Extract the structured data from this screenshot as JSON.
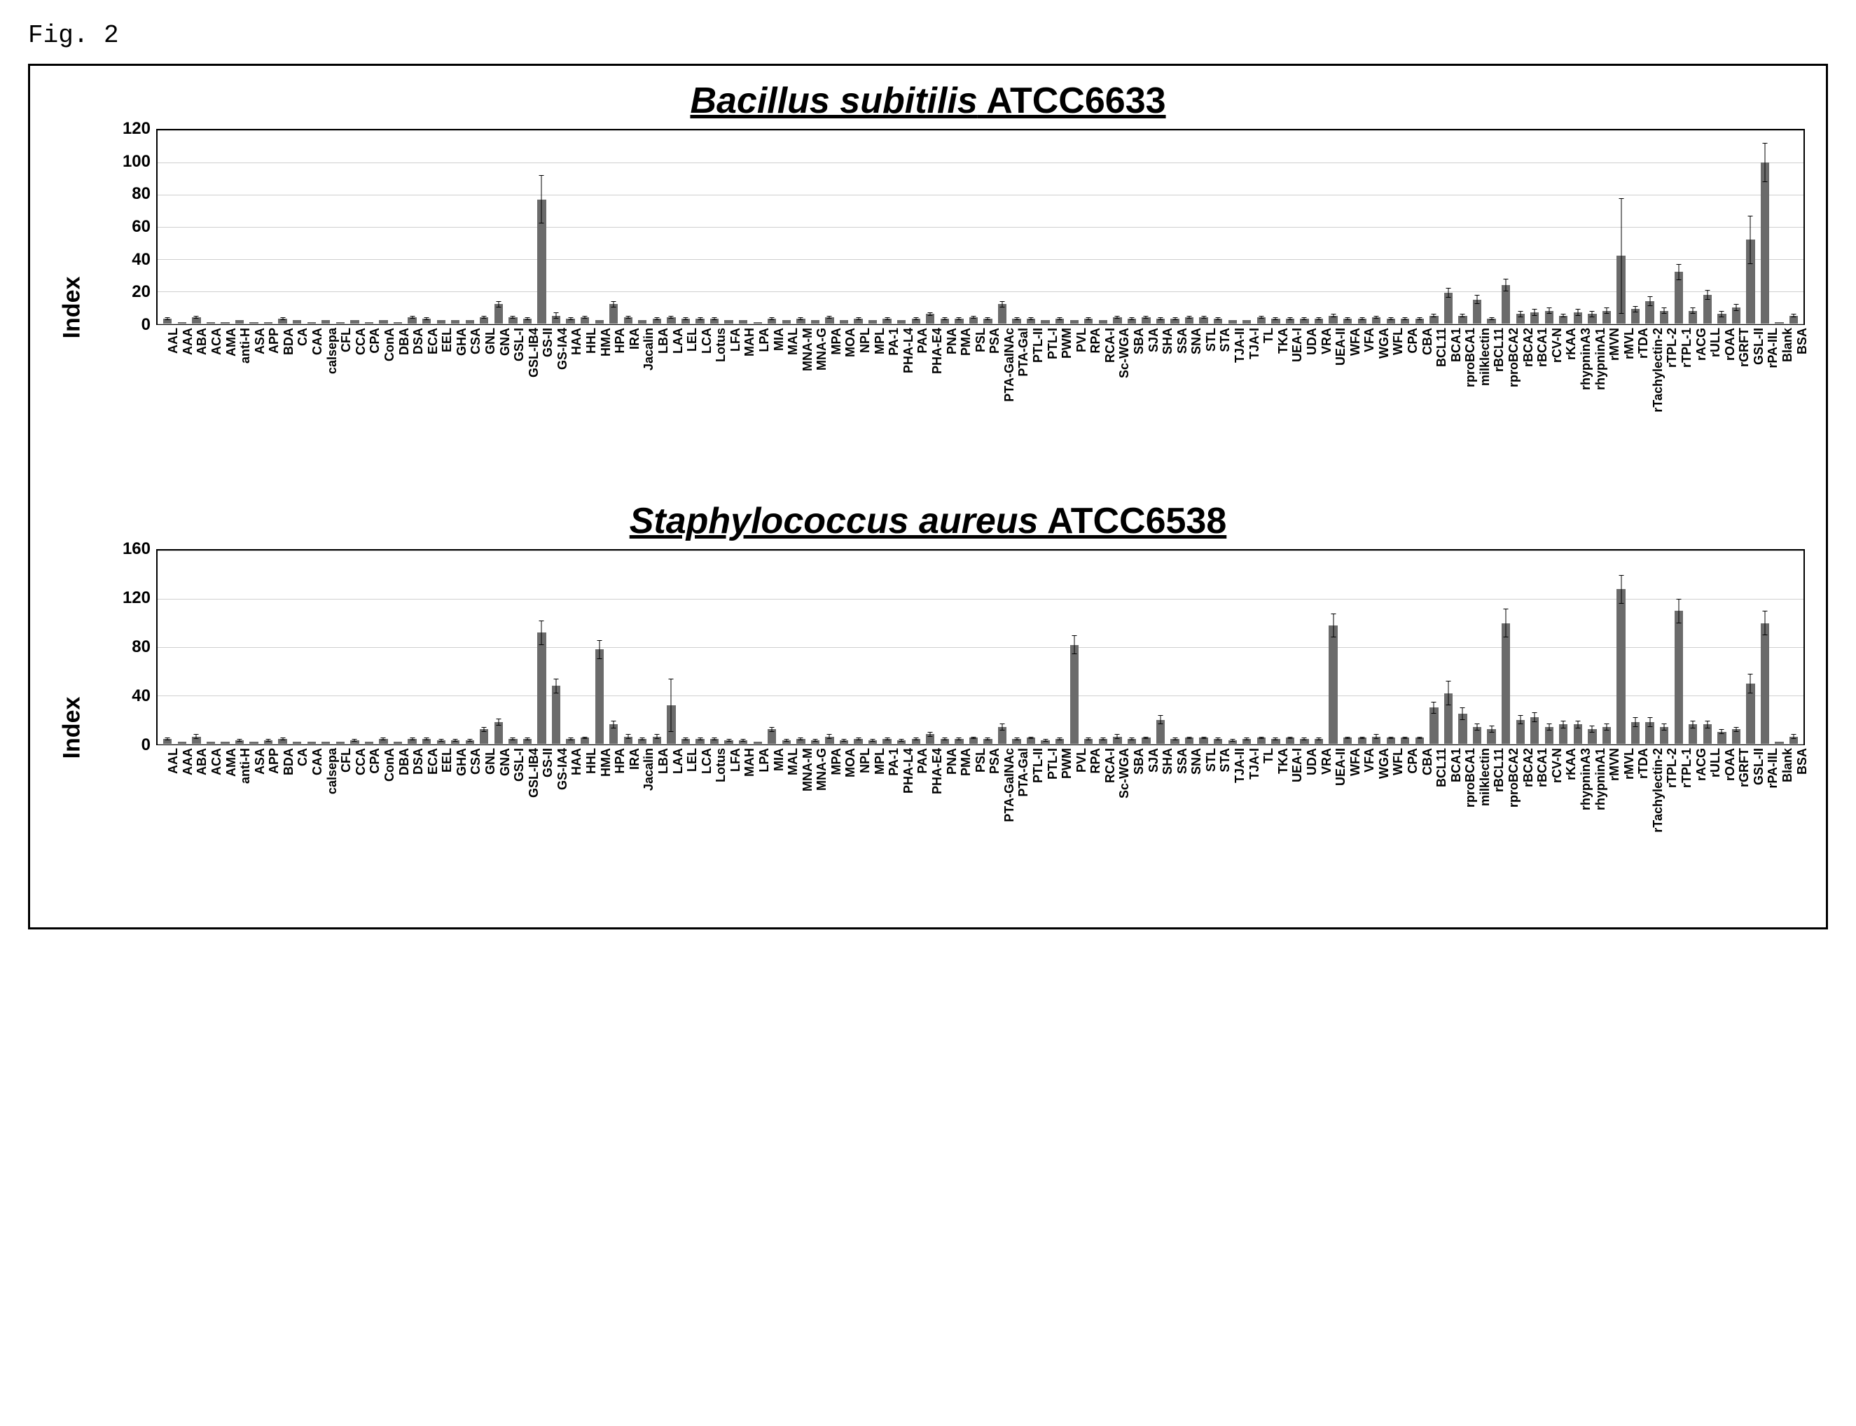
{
  "figLabel": "Fig. 2",
  "categories": [
    "AAL",
    "AAA",
    "ABA",
    "ACA",
    "AMA",
    "anti-H",
    "ASA",
    "APP",
    "BDA",
    "CA",
    "CAA",
    "calsepa",
    "CFL",
    "CCA",
    "CPA",
    "ConA",
    "DBA",
    "DSA",
    "ECA",
    "EEL",
    "GHA",
    "CSA",
    "GNL",
    "GNA",
    "GSL-I",
    "GSL-IB4",
    "GS-II",
    "GS-IA4",
    "HAA",
    "HHL",
    "HMA",
    "HPA",
    "IRA",
    "Jacalin",
    "LBA",
    "LAA",
    "LEL",
    "LCA",
    "Lotus",
    "LFA",
    "MAH",
    "LPA",
    "MIA",
    "MAL",
    "MNA-M",
    "MNA-G",
    "MPA",
    "MOA",
    "NPL",
    "MPL",
    "PA-1",
    "PHA-L4",
    "PAA",
    "PHA-E4",
    "PNA",
    "PMA",
    "PSL",
    "PSA",
    "PTA-GaINAc",
    "PTA-Gal",
    "PTL-II",
    "PTL-I",
    "PWM",
    "PVL",
    "RPA",
    "RCA-I",
    "Sc-WGA",
    "SBA",
    "SJA",
    "SHA",
    "SSA",
    "SNA",
    "STL",
    "STA",
    "TJA-II",
    "TJA-I",
    "TL",
    "TKA",
    "UEA-I",
    "UDA",
    "VRA",
    "UEA-II",
    "WFA",
    "VFA",
    "WGA",
    "WFL",
    "CPA",
    "CBA",
    "BCL11",
    "BCA1",
    "rproBCA1",
    "milklectin",
    "rBCL11",
    "rproBCA2",
    "rBCA2",
    "rBCA1",
    "rCV-N",
    "rKAA",
    "rhypninA3",
    "rhypninA1",
    "rMVN",
    "rMVL",
    "rTDA",
    "rTachylectin-2",
    "rTPL-2",
    "rTPL-1",
    "rACG",
    "rULL",
    "rOAA",
    "rGRFT",
    "GSL-II",
    "rPA-IIL",
    "Blank",
    "BSA"
  ],
  "charts": [
    {
      "titleItalic": "Bacillus subitilis",
      "titleRest": " ATCC6633",
      "ylabel": "Index",
      "ylim": [
        0,
        120
      ],
      "ytickStep": 20,
      "plotHeight": 280,
      "barColor": "#6b6b6b",
      "gridColor": "#cfcfcf",
      "background": "#ffffff",
      "barFontSize": 18,
      "tickFontSize": 24,
      "titleFontSize": 52,
      "values": [
        3,
        1,
        4,
        1,
        1,
        2,
        1,
        1,
        3,
        2,
        1,
        2,
        1,
        2,
        1,
        2,
        1,
        4,
        3,
        2,
        2,
        2,
        4,
        12,
        4,
        3,
        77,
        5,
        3,
        4,
        2,
        12,
        4,
        2,
        3,
        4,
        3,
        3,
        3,
        2,
        2,
        1,
        3,
        2,
        3,
        2,
        4,
        2,
        3,
        2,
        3,
        2,
        3,
        6,
        3,
        3,
        4,
        3,
        12,
        3,
        3,
        2,
        3,
        2,
        3,
        2,
        4,
        3,
        4,
        3,
        3,
        4,
        4,
        3,
        2,
        2,
        4,
        3,
        3,
        3,
        3,
        5,
        3,
        3,
        4,
        3,
        3,
        3,
        5,
        19,
        5,
        15,
        3,
        24,
        6,
        7,
        8,
        5,
        7,
        6,
        8,
        42,
        9,
        14,
        8,
        32,
        8,
        18,
        6,
        10,
        52,
        100,
        1,
        5
      ],
      "errors": [
        1,
        0,
        1,
        0,
        0,
        0,
        0,
        0,
        1,
        0,
        0,
        0,
        0,
        0,
        0,
        0,
        0,
        1,
        1,
        0,
        0,
        0,
        1,
        2,
        1,
        1,
        15,
        2,
        1,
        1,
        0,
        2,
        1,
        0,
        1,
        1,
        1,
        1,
        1,
        0,
        0,
        0,
        1,
        0,
        1,
        0,
        1,
        0,
        1,
        0,
        1,
        0,
        1,
        1,
        1,
        1,
        1,
        1,
        2,
        1,
        1,
        0,
        1,
        0,
        1,
        0,
        1,
        1,
        1,
        1,
        1,
        1,
        1,
        1,
        0,
        0,
        1,
        1,
        1,
        1,
        1,
        1,
        1,
        1,
        1,
        1,
        1,
        1,
        1,
        3,
        1,
        3,
        1,
        4,
        2,
        2,
        2,
        1,
        2,
        2,
        2,
        36,
        2,
        3,
        2,
        5,
        2,
        3,
        2,
        2,
        15,
        12,
        0,
        1
      ]
    },
    {
      "titleItalic": "Staphylococcus aureus",
      "titleRest": " ATCC6538",
      "ylabel": "Index",
      "ylim": [
        0,
        160
      ],
      "ytickStep": 40,
      "plotHeight": 280,
      "barColor": "#6b6b6b",
      "gridColor": "#cfcfcf",
      "background": "#ffffff",
      "barFontSize": 18,
      "tickFontSize": 24,
      "titleFontSize": 52,
      "values": [
        4,
        2,
        6,
        2,
        2,
        3,
        2,
        3,
        4,
        2,
        2,
        2,
        2,
        3,
        2,
        4,
        2,
        4,
        4,
        3,
        3,
        3,
        12,
        18,
        4,
        4,
        92,
        48,
        4,
        5,
        78,
        16,
        6,
        4,
        6,
        32,
        4,
        4,
        4,
        3,
        3,
        2,
        12,
        3,
        4,
        3,
        6,
        3,
        4,
        3,
        4,
        3,
        4,
        8,
        4,
        4,
        5,
        4,
        14,
        4,
        5,
        3,
        4,
        82,
        4,
        4,
        6,
        4,
        5,
        20,
        4,
        5,
        5,
        4,
        3,
        4,
        5,
        4,
        5,
        4,
        4,
        98,
        5,
        5,
        6,
        5,
        5,
        5,
        30,
        42,
        25,
        14,
        12,
        100,
        20,
        22,
        14,
        16,
        16,
        12,
        14,
        128,
        18,
        18,
        14,
        110,
        16,
        16,
        10,
        12,
        50,
        100,
        2,
        6
      ],
      "errors": [
        1,
        0,
        2,
        0,
        0,
        1,
        0,
        1,
        1,
        0,
        0,
        0,
        0,
        1,
        0,
        1,
        0,
        1,
        1,
        1,
        1,
        1,
        2,
        3,
        1,
        1,
        10,
        6,
        1,
        1,
        8,
        3,
        2,
        1,
        2,
        22,
        1,
        1,
        1,
        1,
        1,
        0,
        2,
        1,
        1,
        1,
        2,
        1,
        1,
        1,
        1,
        1,
        1,
        2,
        1,
        1,
        1,
        1,
        3,
        1,
        1,
        1,
        1,
        8,
        1,
        1,
        2,
        1,
        1,
        4,
        1,
        1,
        1,
        1,
        1,
        1,
        1,
        1,
        1,
        1,
        1,
        10,
        1,
        1,
        2,
        1,
        1,
        1,
        5,
        10,
        5,
        3,
        3,
        12,
        4,
        4,
        3,
        3,
        3,
        3,
        3,
        12,
        4,
        4,
        3,
        10,
        3,
        3,
        2,
        2,
        8,
        10,
        0,
        2
      ]
    }
  ]
}
